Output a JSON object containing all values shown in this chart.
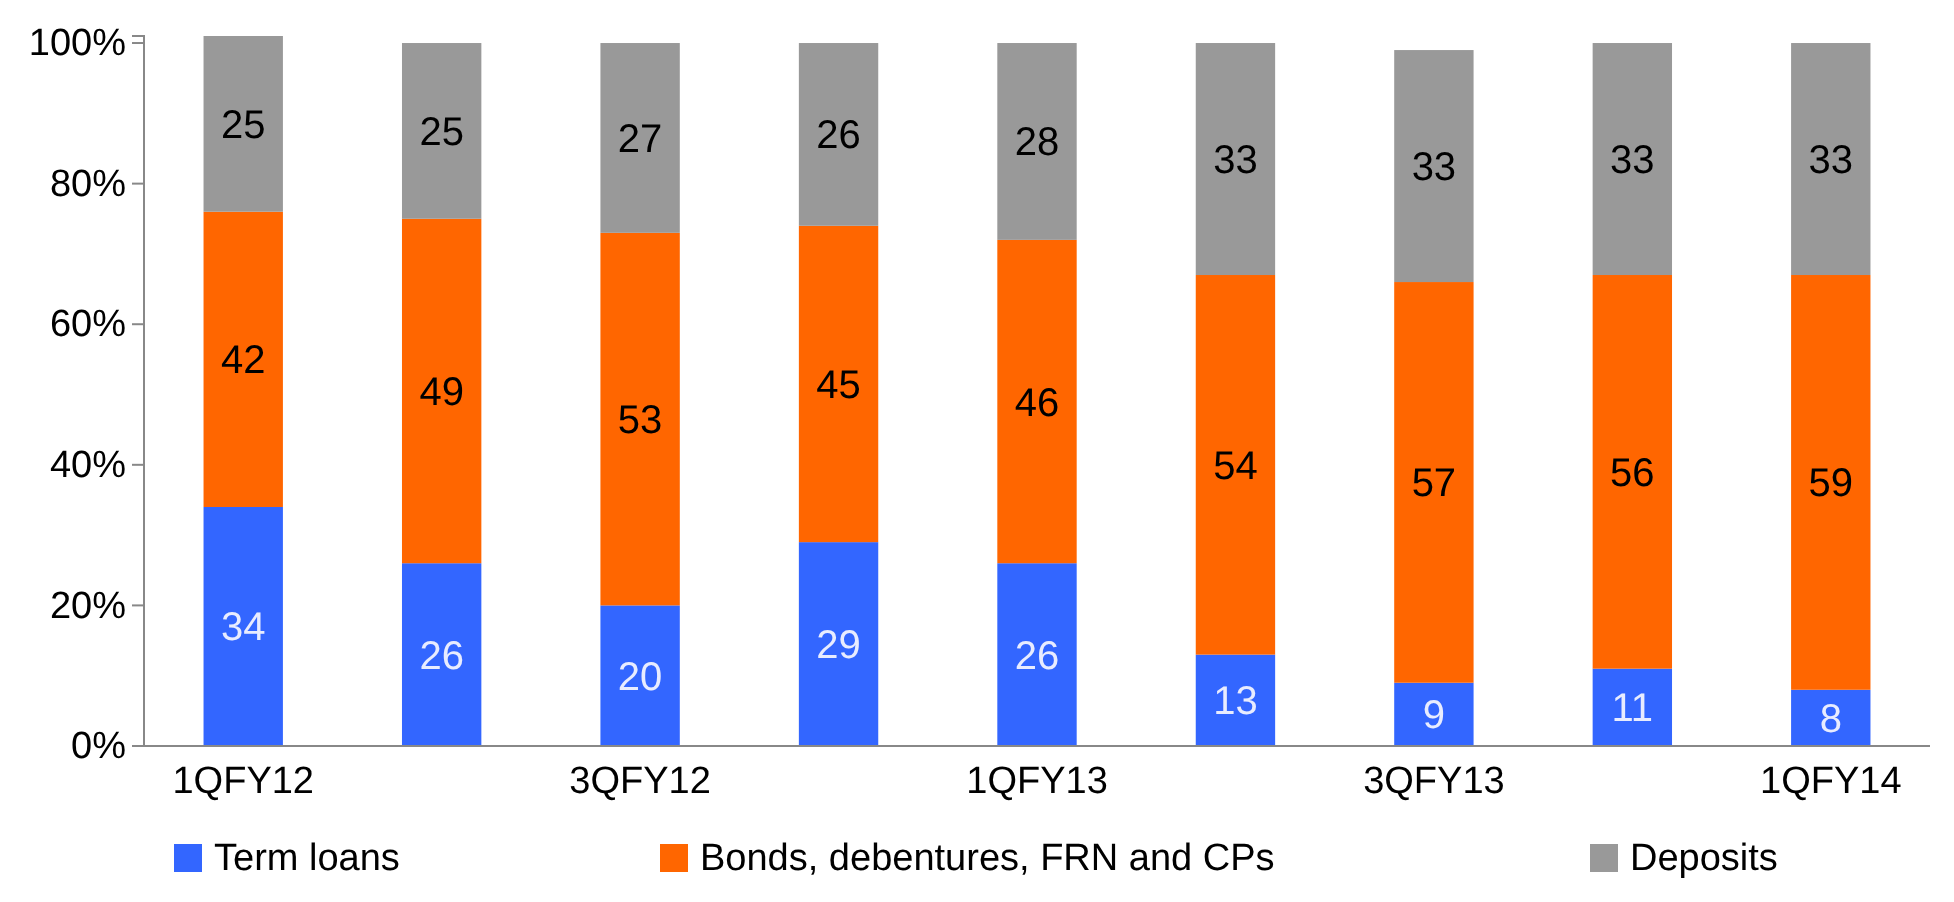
{
  "chart_data": {
    "type": "bar",
    "stacked": true,
    "categories": [
      "1QFY12",
      null,
      "3QFY12",
      null,
      "1QFY13",
      null,
      "3QFY13",
      null,
      "1QFY14"
    ],
    "series": [
      {
        "name": "Term loans",
        "color": "#3366ff",
        "values": [
          34,
          26,
          20,
          29,
          26,
          13,
          9,
          11,
          8
        ]
      },
      {
        "name": "Bonds, debentures, FRN and CPs",
        "color": "#ff6600",
        "values": [
          42,
          49,
          53,
          45,
          46,
          54,
          57,
          56,
          59
        ]
      },
      {
        "name": "Deposits",
        "color": "#999999",
        "values": [
          25,
          25,
          27,
          26,
          28,
          33,
          33,
          33,
          33
        ]
      }
    ],
    "ylim": [
      0,
      101
    ],
    "yticks": [
      {
        "value": 0,
        "label": "0%"
      },
      {
        "value": 20,
        "label": "20%"
      },
      {
        "value": 40,
        "label": "40%"
      },
      {
        "value": 60,
        "label": "60%"
      },
      {
        "value": 80,
        "label": "80%"
      },
      {
        "value": 100,
        "label": "100%"
      }
    ],
    "data_labels": true,
    "legend": "bottom",
    "grid": false
  }
}
